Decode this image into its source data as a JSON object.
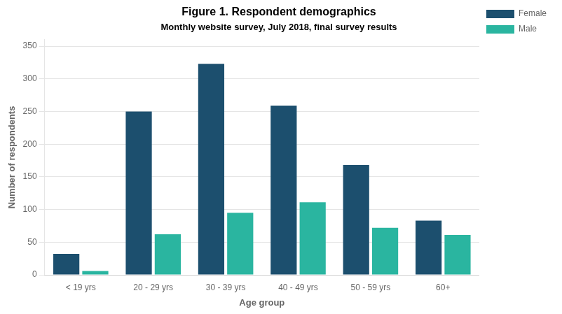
{
  "chart_data": {
    "type": "bar",
    "title": "Figure 1. Respondent demographics",
    "subtitle": "Monthly website survey, July 2018, final survey results",
    "xlabel": "Age group",
    "ylabel": "Number of respondents",
    "categories": [
      "< 19 yrs",
      "20 - 29 yrs",
      "30 - 39 yrs",
      "40 - 49 yrs",
      "50 - 59 yrs",
      "60+"
    ],
    "series": [
      {
        "name": "Female",
        "color": "#1c4f6e",
        "values": [
          32,
          250,
          323,
          259,
          168,
          83
        ]
      },
      {
        "name": "Male",
        "color": "#2ab5a0",
        "values": [
          6,
          62,
          95,
          111,
          72,
          61
        ]
      }
    ],
    "ylim": [
      0,
      360
    ],
    "yticks": [
      0,
      50,
      100,
      150,
      200,
      250,
      300,
      350
    ],
    "grid": true,
    "legend": "right"
  }
}
